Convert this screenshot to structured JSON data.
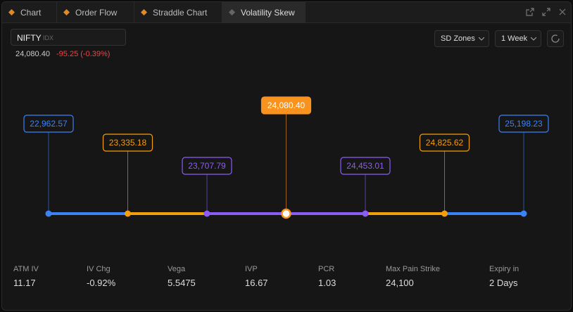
{
  "tabs": [
    "Chart",
    "Order Flow",
    "Straddle Chart",
    "Volatility Skew"
  ],
  "symbol": {
    "name": "NIFTY",
    "exchange": "IDX",
    "price": "24,080.40",
    "change": "-95.25 (-0.39%)"
  },
  "controls": {
    "zones": "SD Zones",
    "period": "1 Week"
  },
  "levels": [
    "22,962.57",
    "23,335.18",
    "23,707.79",
    "24,080.40",
    "24,453.01",
    "24,825.62",
    "25,198.23"
  ],
  "stats": [
    {
      "label": "ATM IV",
      "value": "11.17"
    },
    {
      "label": "IV Chg",
      "value": "-0.92%"
    },
    {
      "label": "Vega",
      "value": "5.5475"
    },
    {
      "label": "IVP",
      "value": "16.67"
    },
    {
      "label": "PCR",
      "value": "1.03"
    },
    {
      "label": "Max Pain Strike",
      "value": "24,100"
    },
    {
      "label": "Expiry in",
      "value": "2 Days"
    }
  ]
}
